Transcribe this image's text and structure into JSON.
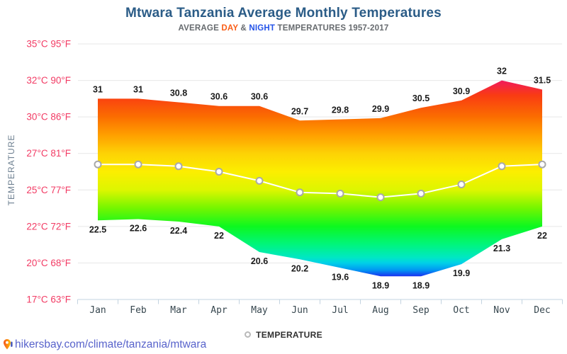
{
  "header": {
    "title": "Mtwara Tanzania Average Monthly Temperatures",
    "subtitle_prefix": "AVERAGE",
    "subtitle_day": "DAY",
    "subtitle_amp": "&",
    "subtitle_night": "NIGHT",
    "subtitle_suffix": "TEMPERATURES 1957-2017"
  },
  "chart_data": {
    "type": "area",
    "title": "Mtwara Tanzania Average Monthly Temperatures",
    "subtitle": "AVERAGE DAY & NIGHT TEMPERATURES 1957-2017",
    "categories": [
      "Jan",
      "Feb",
      "Mar",
      "Apr",
      "May",
      "Jun",
      "Jul",
      "Aug",
      "Sep",
      "Oct",
      "Nov",
      "Dec"
    ],
    "series": [
      {
        "name": "day",
        "values": [
          31,
          31,
          30.8,
          30.6,
          30.6,
          29.7,
          29.8,
          29.9,
          30.5,
          30.9,
          32,
          31.5
        ]
      },
      {
        "name": "night",
        "values": [
          22.5,
          22.6,
          22.4,
          22,
          20.6,
          20.2,
          19.6,
          18.9,
          18.9,
          19.9,
          21.3,
          22
        ]
      },
      {
        "name": "temperature-mean-line",
        "values": [
          26.4,
          26.4,
          26.3,
          26.0,
          25.5,
          24.8,
          24.7,
          24.4,
          24.7,
          25.3,
          26.3,
          26.4
        ]
      }
    ],
    "ylabel": "TEMPERATURE",
    "ylim": [
      17,
      35
    ],
    "grid": true,
    "legend_position": "bottom-center",
    "yticks": [
      {
        "value": 35,
        "label": "35°C 95°F"
      },
      {
        "value": 32,
        "label": "32°C 90°F"
      },
      {
        "value": 30,
        "label": "30°C 86°F"
      },
      {
        "value": 27,
        "label": "27°C 81°F"
      },
      {
        "value": 25,
        "label": "25°C 77°F"
      },
      {
        "value": 22,
        "label": "22°C 72°F"
      },
      {
        "value": 20,
        "label": "20°C 68°F"
      },
      {
        "value": 17,
        "label": "17°C 63°F"
      }
    ],
    "legend": {
      "label": "TEMPERATURE"
    },
    "colors": {
      "title": "#2b5c87",
      "subtitle_day": "#f95d16",
      "subtitle_night": "#2453e8",
      "ytick_label": "#f23b64",
      "month_label": "#37474f",
      "value_label": "#1b1b1b",
      "gridline": "#e7e7e7",
      "axis_line": "#c3d3e0",
      "mean_line": "#ffffff",
      "marker_fill": "#ffffff",
      "marker_stroke": "#a9a9a9",
      "gradient_stops": [
        {
          "temp": 32,
          "color": "#f1195c"
        },
        {
          "temp": 31.2,
          "color": "#f93b13"
        },
        {
          "temp": 30,
          "color": "#fb6d00"
        },
        {
          "temp": 28.5,
          "color": "#ffa000"
        },
        {
          "temp": 27,
          "color": "#fdd205"
        },
        {
          "temp": 26,
          "color": "#fcee00"
        },
        {
          "temp": 25,
          "color": "#ddf600"
        },
        {
          "temp": 23.5,
          "color": "#74f600"
        },
        {
          "temp": 22,
          "color": "#0df81f"
        },
        {
          "temp": 21,
          "color": "#00f57e"
        },
        {
          "temp": 20.3,
          "color": "#00e7c4"
        },
        {
          "temp": 20,
          "color": "#00d0e8"
        },
        {
          "temp": 19.4,
          "color": "#0095f2"
        },
        {
          "temp": 18.9,
          "color": "#1b2ff0"
        }
      ]
    }
  },
  "footer": {
    "icon": "map-pin-icon",
    "link": "hikersbay.com/climate/tanzania/mtwara",
    "link_color": "#5863cb"
  }
}
